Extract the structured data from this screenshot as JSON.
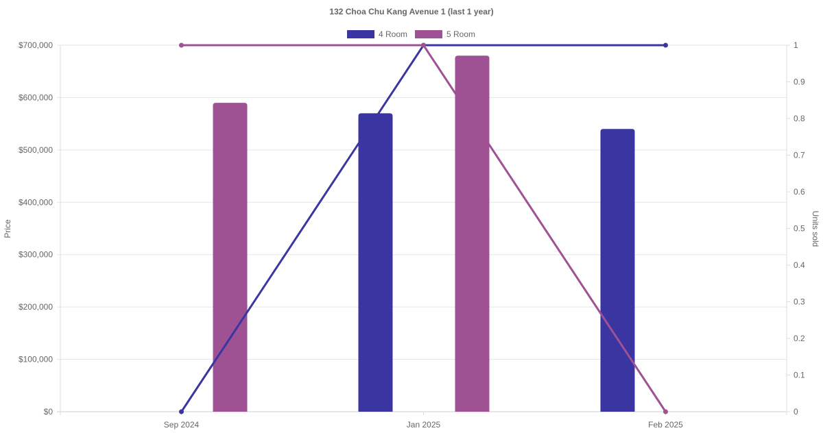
{
  "chart_data": {
    "type": "bar",
    "title": "132 Choa Chu Kang Avenue 1 (last 1 year)",
    "categories": [
      "Sep 2024",
      "Jan 2025",
      "Feb 2025"
    ],
    "ylabel": "Price",
    "y2label": "Units sold",
    "ylim": [
      0,
      700000
    ],
    "y2lim": [
      0,
      1
    ],
    "yticks": [
      "$0",
      "$100,000",
      "$200,000",
      "$300,000",
      "$400,000",
      "$500,000",
      "$600,000",
      "$700,000"
    ],
    "y2ticks": [
      "0",
      "0.1",
      "0.2",
      "0.3",
      "0.4",
      "0.5",
      "0.6",
      "0.7",
      "0.8",
      "0.9",
      "1"
    ],
    "grid": true,
    "legend": "top",
    "series": [
      {
        "name": "4 Room",
        "color": "#3a35a0",
        "price": [
          null,
          570000,
          540000
        ],
        "units_sold": [
          0,
          1,
          1
        ]
      },
      {
        "name": "5 Room",
        "color": "#9e5193",
        "price": [
          590000,
          680000,
          null
        ],
        "units_sold": [
          1,
          1,
          0
        ]
      }
    ]
  }
}
